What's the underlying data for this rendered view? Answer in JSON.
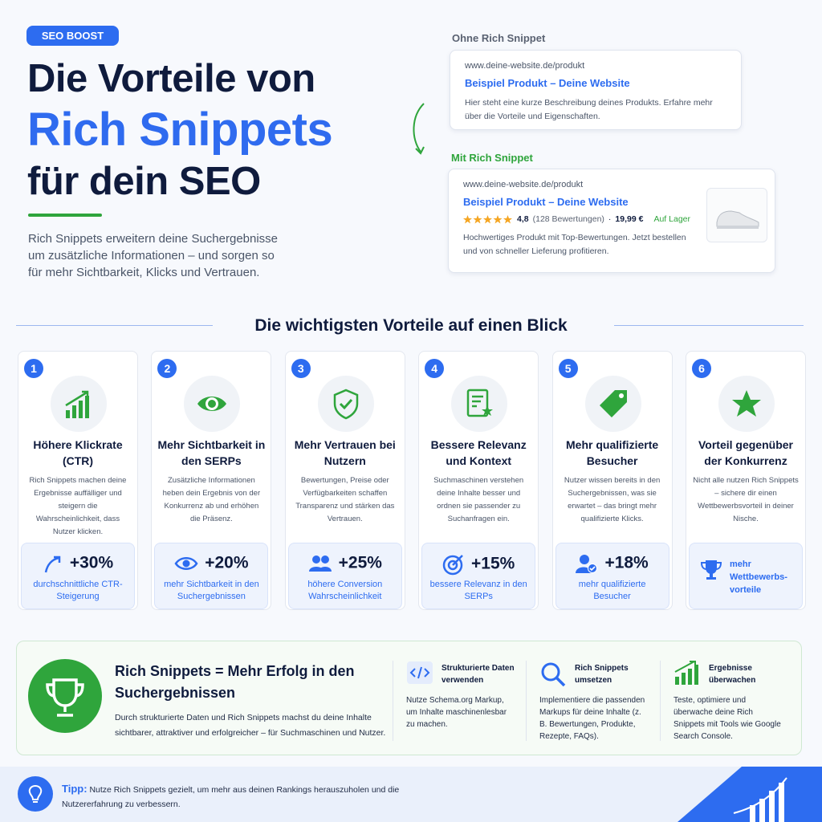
{
  "header": {
    "badge": "SEO BOOST",
    "title_line1": "Die Vorteile von",
    "title_line2": "Rich Snippets",
    "title_line3": "für dein SEO",
    "intro": "Rich Snippets erweitern deine Suchergebnisse um zusätzliche Informationen – und sorgen so für mehr Sichtbarkeit, Klicks und Vertrauen."
  },
  "comparison": {
    "without": {
      "label": "Ohne Rich Snippet",
      "url": "www.deine-website.de/produkt",
      "title": "Beispiel Produkt – Deine Website",
      "description": "Hier steht eine kurze Beschreibung deines Produkts. Erfahre mehr über die Vorteile und Eigenschaften."
    },
    "with": {
      "label": "Mit Rich Snippet",
      "url": "www.deine-website.de/produkt",
      "title": "Beispiel Produkt – Deine Website",
      "rating": "4,8",
      "reviews": "(128 Bewertungen)",
      "separator": "·",
      "price": "19,99 €",
      "stock": "Auf Lager",
      "description": "Hochwertiges Produkt mit Top-Bewertungen. Jetzt bestellen und von schneller Lieferung profitieren."
    }
  },
  "section_title": "Die wichtigsten Vorteile auf einen Blick",
  "benefits": [
    {
      "number": "1",
      "title": "Höhere Klickrate (CTR)",
      "text": "Rich Snippets machen deine Ergebnisse auffälliger und steigern die Wahrscheinlichkeit, dass Nutzer klicken.",
      "stat": "+30%",
      "stat_label": "durchschnittliche CTR-Steigerung"
    },
    {
      "number": "2",
      "title": "Mehr Sichtbarkeit in den SERPs",
      "text": "Zusätzliche Informationen heben dein Ergebnis von der Konkurrenz ab und erhöhen die Präsenz.",
      "stat": "+20%",
      "stat_label": "mehr Sichtbarkeit in den Suchergebnissen"
    },
    {
      "number": "3",
      "title": "Mehr Vertrauen bei Nutzern",
      "text": "Bewertungen, Preise oder Verfügbarkeiten schaffen Transparenz und stärken das Vertrauen.",
      "stat": "+25%",
      "stat_label": "höhere Conversion Wahrscheinlichkeit"
    },
    {
      "number": "4",
      "title": "Bessere Relevanz und Kontext",
      "text": "Suchmaschinen verstehen deine Inhalte besser und ordnen sie passender zu Suchanfragen ein.",
      "stat": "+15%",
      "stat_label": "bessere Relevanz in den SERPs"
    },
    {
      "number": "5",
      "title": "Mehr qualifizierte Besucher",
      "text": "Nutzer wissen bereits in den Suchergebnissen, was sie erwartet – das bringt mehr qualifizierte Klicks.",
      "stat": "+18%",
      "stat_label": "mehr qualifizierte Besucher"
    },
    {
      "number": "6",
      "title": "Vorteil gegenüber der Konkurrenz",
      "text": "Nicht alle nutzen Rich Snippets – sichere dir einen Wettbewerbsvorteil in deiner Nische.",
      "stat_label": "mehr Wettbewerbs-vorteile"
    }
  ],
  "summary": {
    "title": "Rich Snippets = Mehr Erfolg in den Suchergebnissen",
    "text": "Durch strukturierte Daten und Rich Snippets machst du deine Inhalte sichtbarer, attraktiver und erfolgreicher – für Suchmaschinen und Nutzer.",
    "steps": [
      {
        "title": "Strukturierte Daten verwenden",
        "text": "Nutze Schema.org Markup, um Inhalte maschinenlesbar zu machen."
      },
      {
        "title": "Rich Snippets umsetzen",
        "text": "Implementiere die passenden Markups für deine Inhalte (z. B. Bewertungen, Produkte, Rezepte, FAQs)."
      },
      {
        "title": "Ergebnisse überwachen",
        "text": "Teste, optimiere und überwache deine Rich Snippets mit Tools wie Google Search Console."
      }
    ]
  },
  "tip": {
    "label": "Tipp:",
    "text": "Nutze Rich Snippets gezielt, um mehr aus deinen Rankings herauszuholen und die Nutzererfahrung zu verbessern."
  }
}
